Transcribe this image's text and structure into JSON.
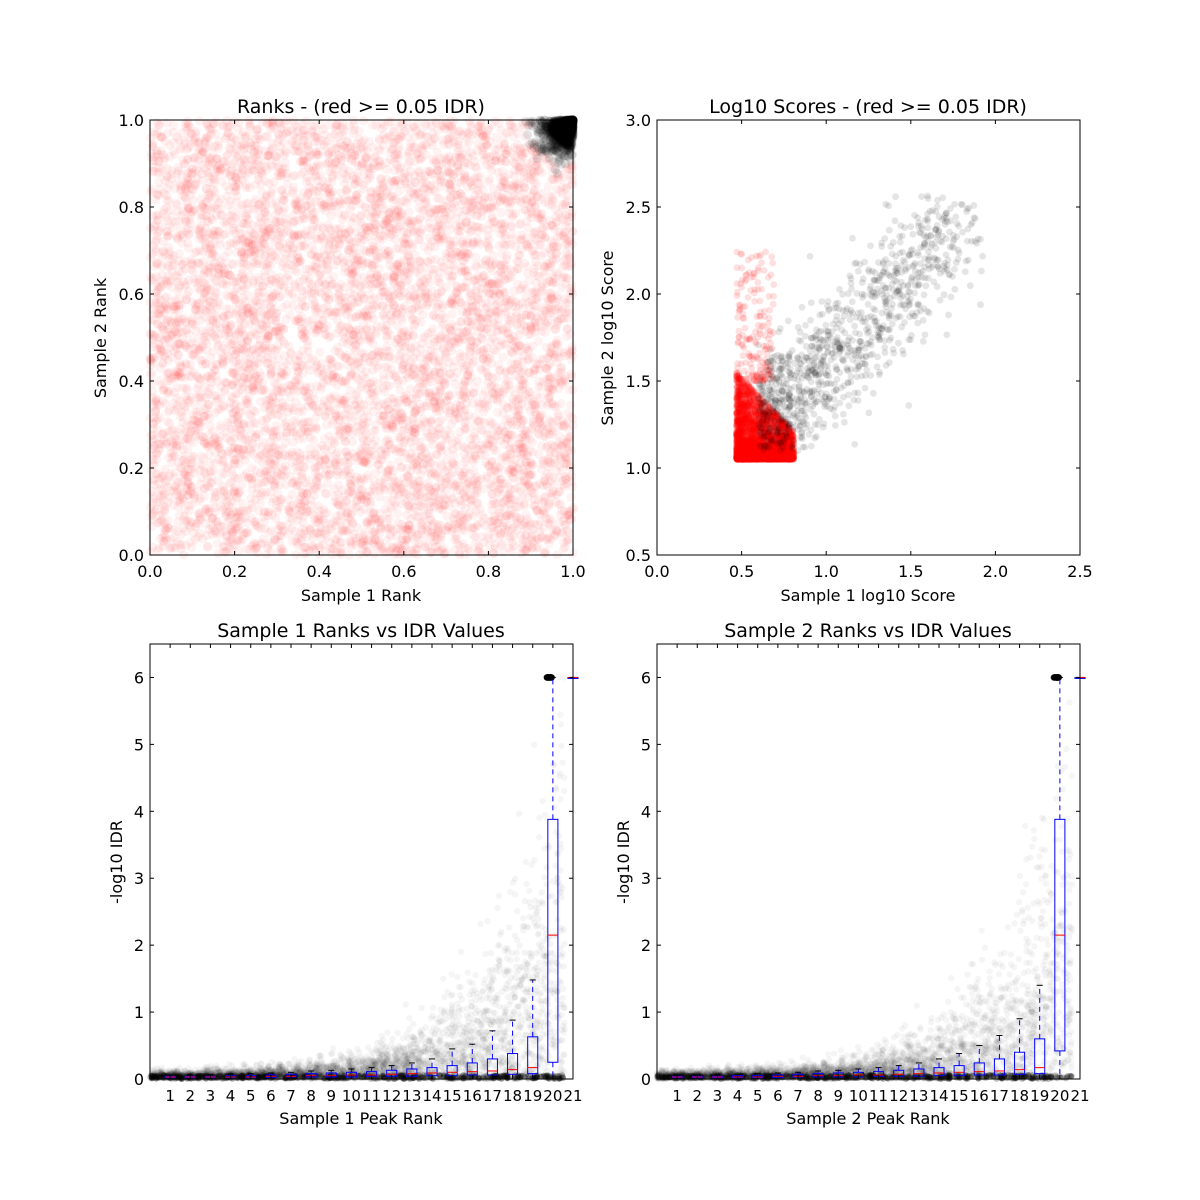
{
  "chart_data": [
    {
      "type": "scatter",
      "title": "Ranks - (red >= 0.05 IDR)",
      "xlabel": "Sample 1 Rank",
      "ylabel": "Sample 2 Rank",
      "xlim": [
        0.0,
        1.0
      ],
      "ylim": [
        0.0,
        1.0
      ],
      "xticks": [
        "0.0",
        "0.2",
        "0.4",
        "0.6",
        "0.8",
        "1.0"
      ],
      "yticks": [
        "0.0",
        "0.2",
        "0.4",
        "0.6",
        "0.8",
        "1.0"
      ],
      "grid": false,
      "colors": {
        "fail": "#ff0000",
        "pass": "#000000"
      },
      "series": [
        {
          "color": "#ff0000",
          "distribution": "uniform over [0,1] x [0,1]"
        },
        {
          "color": "#000000",
          "distribution": "dense cluster in upper-right corner, x > 0.88, y > 0.88"
        }
      ]
    },
    {
      "type": "scatter",
      "title": "Log10 Scores - (red >= 0.05 IDR)",
      "xlabel": "Sample 1 log10 Score",
      "ylabel": "Sample 2 log10 Score",
      "xlim": [
        0.0,
        2.5
      ],
      "ylim": [
        0.5,
        3.0
      ],
      "xticks": [
        "0.0",
        "0.5",
        "1.0",
        "1.5",
        "2.0",
        "2.5"
      ],
      "yticks": [
        "0.5",
        "1.0",
        "1.5",
        "2.0",
        "2.5",
        "3.0"
      ],
      "grid": false,
      "series": [
        {
          "color": "#ff0000",
          "distribution": "dense block x 0.47-0.82, y 1.05-1.55, sparse up to y 2.25"
        },
        {
          "color": "#000000",
          "distribution": "diagonal spread x 0.6-1.95, y 1.1-2.57"
        }
      ]
    },
    {
      "type": "box",
      "title": "Sample 1 Ranks vs IDR Values",
      "xlabel": "Sample 1 Peak Rank",
      "ylabel": "-log10 IDR",
      "xlim": [
        0,
        21
      ],
      "ylim": [
        0,
        6.5
      ],
      "xticks": [
        "1",
        "2",
        "3",
        "4",
        "5",
        "6",
        "7",
        "8",
        "9",
        "10",
        "11",
        "12",
        "13",
        "14",
        "15",
        "16",
        "17",
        "18",
        "19",
        "20",
        "21"
      ],
      "yticks": [
        "0",
        "1",
        "2",
        "3",
        "4",
        "5",
        "6"
      ],
      "grid": false,
      "boxes": [
        {
          "x": 1,
          "q1": 0.02,
          "median": 0.03,
          "q3": 0.04,
          "whisker_high": 0.06
        },
        {
          "x": 2,
          "q1": 0.02,
          "median": 0.03,
          "q3": 0.04,
          "whisker_high": 0.06
        },
        {
          "x": 3,
          "q1": 0.02,
          "median": 0.03,
          "q3": 0.04,
          "whisker_high": 0.07
        },
        {
          "x": 4,
          "q1": 0.02,
          "median": 0.03,
          "q3": 0.05,
          "whisker_high": 0.07
        },
        {
          "x": 5,
          "q1": 0.02,
          "median": 0.03,
          "q3": 0.05,
          "whisker_high": 0.08
        },
        {
          "x": 6,
          "q1": 0.02,
          "median": 0.04,
          "q3": 0.06,
          "whisker_high": 0.09
        },
        {
          "x": 7,
          "q1": 0.03,
          "median": 0.04,
          "q3": 0.07,
          "whisker_high": 0.1
        },
        {
          "x": 8,
          "q1": 0.03,
          "median": 0.05,
          "q3": 0.08,
          "whisker_high": 0.12
        },
        {
          "x": 9,
          "q1": 0.03,
          "median": 0.05,
          "q3": 0.09,
          "whisker_high": 0.13
        },
        {
          "x": 10,
          "q1": 0.03,
          "median": 0.06,
          "q3": 0.1,
          "whisker_high": 0.15
        },
        {
          "x": 11,
          "q1": 0.04,
          "median": 0.06,
          "q3": 0.11,
          "whisker_high": 0.17
        },
        {
          "x": 12,
          "q1": 0.04,
          "median": 0.07,
          "q3": 0.13,
          "whisker_high": 0.2
        },
        {
          "x": 13,
          "q1": 0.04,
          "median": 0.08,
          "q3": 0.15,
          "whisker_high": 0.24
        },
        {
          "x": 14,
          "q1": 0.05,
          "median": 0.09,
          "q3": 0.17,
          "whisker_high": 0.3
        },
        {
          "x": 15,
          "q1": 0.05,
          "median": 0.1,
          "q3": 0.2,
          "whisker_high": 0.45
        },
        {
          "x": 16,
          "q1": 0.06,
          "median": 0.11,
          "q3": 0.24,
          "whisker_high": 0.52
        },
        {
          "x": 17,
          "q1": 0.06,
          "median": 0.12,
          "q3": 0.3,
          "whisker_high": 0.72
        },
        {
          "x": 18,
          "q1": 0.07,
          "median": 0.14,
          "q3": 0.38,
          "whisker_high": 0.88
        },
        {
          "x": 19,
          "q1": 0.08,
          "median": 0.17,
          "q3": 0.63,
          "whisker_high": 1.48
        },
        {
          "x": 20,
          "q1": 0.25,
          "median": 2.15,
          "q3": 3.88,
          "whisker_high": 6.0
        },
        {
          "x": 21,
          "q1": 6.0,
          "median": 6.0,
          "q3": 6.0,
          "whisker_high": 6.0
        }
      ]
    },
    {
      "type": "box",
      "title": "Sample 2 Ranks vs IDR Values",
      "xlabel": "Sample 2 Peak Rank",
      "ylabel": "-log10 IDR",
      "xlim": [
        0,
        21
      ],
      "ylim": [
        0,
        6.5
      ],
      "xticks": [
        "1",
        "2",
        "3",
        "4",
        "5",
        "6",
        "7",
        "8",
        "9",
        "10",
        "11",
        "12",
        "13",
        "14",
        "15",
        "16",
        "17",
        "18",
        "19",
        "20",
        "21"
      ],
      "yticks": [
        "0",
        "1",
        "2",
        "3",
        "4",
        "5",
        "6"
      ],
      "grid": false,
      "boxes": [
        {
          "x": 1,
          "q1": 0.02,
          "median": 0.03,
          "q3": 0.04,
          "whisker_high": 0.06
        },
        {
          "x": 2,
          "q1": 0.02,
          "median": 0.03,
          "q3": 0.04,
          "whisker_high": 0.06
        },
        {
          "x": 3,
          "q1": 0.02,
          "median": 0.03,
          "q3": 0.04,
          "whisker_high": 0.07
        },
        {
          "x": 4,
          "q1": 0.02,
          "median": 0.03,
          "q3": 0.05,
          "whisker_high": 0.07
        },
        {
          "x": 5,
          "q1": 0.02,
          "median": 0.03,
          "q3": 0.05,
          "whisker_high": 0.08
        },
        {
          "x": 6,
          "q1": 0.02,
          "median": 0.04,
          "q3": 0.06,
          "whisker_high": 0.09
        },
        {
          "x": 7,
          "q1": 0.03,
          "median": 0.04,
          "q3": 0.07,
          "whisker_high": 0.1
        },
        {
          "x": 8,
          "q1": 0.03,
          "median": 0.05,
          "q3": 0.08,
          "whisker_high": 0.12
        },
        {
          "x": 9,
          "q1": 0.03,
          "median": 0.05,
          "q3": 0.09,
          "whisker_high": 0.13
        },
        {
          "x": 10,
          "q1": 0.03,
          "median": 0.06,
          "q3": 0.1,
          "whisker_high": 0.15
        },
        {
          "x": 11,
          "q1": 0.04,
          "median": 0.06,
          "q3": 0.11,
          "whisker_high": 0.17
        },
        {
          "x": 12,
          "q1": 0.04,
          "median": 0.07,
          "q3": 0.13,
          "whisker_high": 0.2
        },
        {
          "x": 13,
          "q1": 0.04,
          "median": 0.08,
          "q3": 0.15,
          "whisker_high": 0.24
        },
        {
          "x": 14,
          "q1": 0.05,
          "median": 0.09,
          "q3": 0.17,
          "whisker_high": 0.3
        },
        {
          "x": 15,
          "q1": 0.05,
          "median": 0.1,
          "q3": 0.2,
          "whisker_high": 0.38
        },
        {
          "x": 16,
          "q1": 0.06,
          "median": 0.11,
          "q3": 0.24,
          "whisker_high": 0.5
        },
        {
          "x": 17,
          "q1": 0.06,
          "median": 0.12,
          "q3": 0.3,
          "whisker_high": 0.65
        },
        {
          "x": 18,
          "q1": 0.07,
          "median": 0.14,
          "q3": 0.4,
          "whisker_high": 0.9
        },
        {
          "x": 19,
          "q1": 0.08,
          "median": 0.17,
          "q3": 0.6,
          "whisker_high": 1.4
        },
        {
          "x": 20,
          "q1": 0.42,
          "median": 2.15,
          "q3": 3.88,
          "whisker_high": 6.0
        },
        {
          "x": 21,
          "q1": 6.0,
          "median": 6.0,
          "q3": 6.0,
          "whisker_high": 6.0
        }
      ]
    }
  ]
}
